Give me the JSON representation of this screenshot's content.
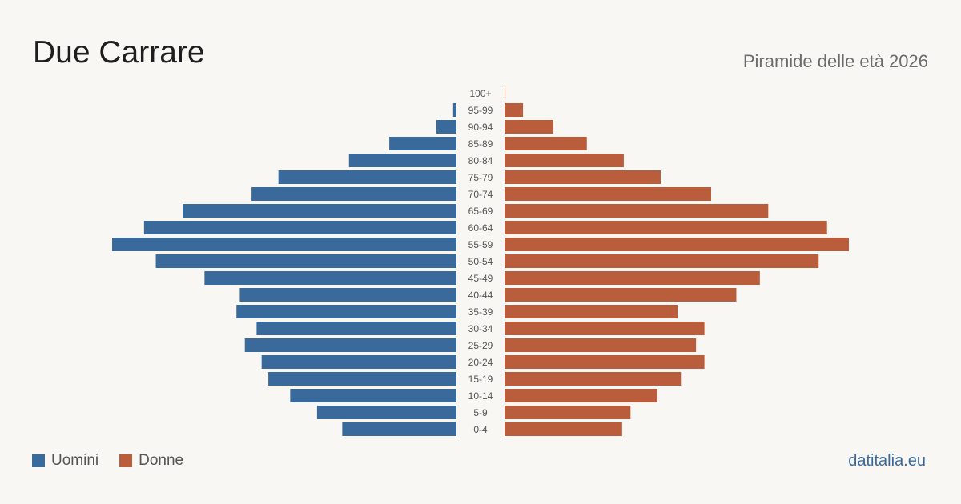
{
  "header": {
    "title": "Due Carrare",
    "subtitle": "Piramide delle età 2026"
  },
  "legend": {
    "men_label": "Uomini",
    "women_label": "Donne"
  },
  "footer": {
    "source": "datitalia.eu"
  },
  "colors": {
    "men": "#3a6a9b",
    "women": "#b95d3d",
    "background": "#f9f7f3",
    "age_label": "#555555"
  },
  "chart_data": {
    "type": "bar",
    "orientation": "horizontal-pyramid",
    "categories": [
      "100+",
      "95-99",
      "90-94",
      "85-89",
      "80-84",
      "75-79",
      "70-74",
      "65-69",
      "60-64",
      "55-59",
      "50-54",
      "45-49",
      "40-44",
      "35-39",
      "30-34",
      "25-29",
      "20-24",
      "15-19",
      "10-14",
      "5-9",
      "0-4"
    ],
    "series": [
      {
        "name": "Uomini",
        "values": [
          0,
          2,
          12,
          40,
          64,
          106,
          122,
          163,
          186,
          205,
          179,
          150,
          129,
          131,
          119,
          126,
          116,
          112,
          99,
          83,
          68
        ]
      },
      {
        "name": "Donne",
        "values": [
          0.5,
          11,
          29,
          49,
          71,
          93,
          123,
          157,
          192,
          205,
          187,
          152,
          138,
          103,
          119,
          114,
          119,
          105,
          91,
          75,
          70
        ]
      }
    ],
    "xlim": [
      0,
      205
    ],
    "legend_position": "bottom-left",
    "grid": false
  }
}
